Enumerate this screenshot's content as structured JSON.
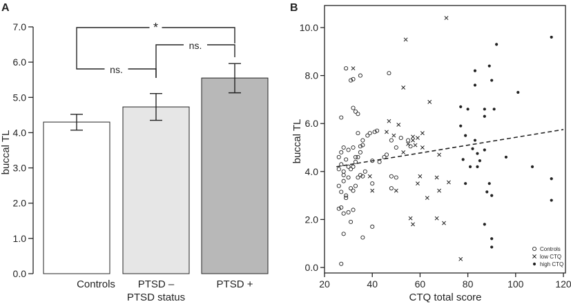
{
  "panels": {
    "a": "A",
    "b": "B"
  },
  "colors": {
    "ink": "#222222",
    "bar_controls": "#ffffff",
    "bar_ptsd_minus": "#e6e6e6",
    "bar_ptsd_plus": "#b8b8b8"
  },
  "chart_data": [
    {
      "type": "bar",
      "panel": "A",
      "title": "",
      "xlabel": "PTSD status",
      "ylabel": "buccal TL",
      "ylim": [
        0,
        7
      ],
      "yticks": [
        0,
        1,
        2,
        3,
        4,
        5,
        6,
        7
      ],
      "ytick_labels": [
        "0.0",
        "1.0",
        "2.0",
        "3.0",
        "4.0",
        "5.0",
        "6.0",
        "7.0"
      ],
      "categories": [
        "Controls",
        "PTSD –",
        "PTSD +"
      ],
      "values": [
        4.3,
        4.73,
        5.55
      ],
      "error_low": [
        4.07,
        4.35,
        5.13
      ],
      "error_high": [
        4.52,
        5.11,
        5.96
      ],
      "annotations": [
        {
          "label": "*",
          "from": 0,
          "to": 2
        },
        {
          "label": "ns.",
          "from": 0,
          "to": 1
        },
        {
          "label": "ns.",
          "from": 1,
          "to": 2
        }
      ]
    },
    {
      "type": "scatter",
      "panel": "B",
      "title": "",
      "xlabel": "CTQ total score",
      "ylabel": "buccal TL",
      "xlim": [
        20,
        120
      ],
      "ylim": [
        0,
        10
      ],
      "xticks": [
        20,
        40,
        60,
        80,
        100,
        120
      ],
      "xtick_labels": [
        "20",
        "40",
        "60",
        "80",
        "100",
        "120"
      ],
      "yticks": [
        0,
        2,
        4,
        6,
        8,
        10
      ],
      "ytick_labels": [
        "0.0",
        "2.0",
        "4.0",
        "6.0",
        "8.0",
        "10.0"
      ],
      "legend": {
        "position": "bottom-right",
        "entries": [
          "Controls",
          "low CTQ",
          "high CTQ"
        ]
      },
      "trend_line": {
        "style": "dashed",
        "x": [
          25,
          120
        ],
        "y": [
          4.2,
          5.75
        ]
      },
      "series": [
        {
          "name": "Controls",
          "marker": "circle",
          "points": [
            [
              27,
              0.15
            ],
            [
              28,
              1.4
            ],
            [
              27,
              2.5
            ],
            [
              26,
              2.45
            ],
            [
              28,
              2.25
            ],
            [
              29,
              2.9
            ],
            [
              31,
              1.9
            ],
            [
              32,
              2.4
            ],
            [
              36,
              1.25
            ],
            [
              40,
              1.7
            ],
            [
              26,
              3.4
            ],
            [
              27,
              3.15
            ],
            [
              28,
              3.6
            ],
            [
              29,
              3.0
            ],
            [
              30,
              3.75
            ],
            [
              31,
              3.3
            ],
            [
              32,
              3.2
            ],
            [
              33,
              3.4
            ],
            [
              34,
              3.75
            ],
            [
              35,
              3.85
            ],
            [
              26,
              4.1
            ],
            [
              27,
              4.3
            ],
            [
              28,
              4.0
            ],
            [
              29,
              4.5
            ],
            [
              30,
              4.2
            ],
            [
              31,
              4.1
            ],
            [
              32,
              4.2
            ],
            [
              33,
              4.4
            ],
            [
              34,
              4.6
            ],
            [
              35,
              4.8
            ],
            [
              26,
              4.6
            ],
            [
              27,
              4.8
            ],
            [
              28,
              5.0
            ],
            [
              30,
              4.9
            ],
            [
              32,
              5.0
            ],
            [
              35,
              5.05
            ],
            [
              36,
              5.3
            ],
            [
              38,
              5.5
            ],
            [
              39,
              5.6
            ],
            [
              41,
              5.65
            ],
            [
              42,
              5.7
            ],
            [
              40,
              4.45
            ],
            [
              43,
              4.4
            ],
            [
              45,
              4.6
            ],
            [
              46,
              4.7
            ],
            [
              48,
              5.3
            ],
            [
              50,
              5.0
            ],
            [
              52,
              5.4
            ],
            [
              55,
              5.3
            ],
            [
              56,
              5.05
            ],
            [
              27,
              6.25
            ],
            [
              29,
              8.3
            ],
            [
              31,
              7.8
            ],
            [
              32,
              7.85
            ],
            [
              33,
              6.5
            ],
            [
              32,
              6.65
            ],
            [
              34,
              6.4
            ],
            [
              35,
              8.0
            ],
            [
              47,
              8.1
            ],
            [
              37,
              4.0
            ],
            [
              36,
              3.8
            ],
            [
              48,
              3.8
            ],
            [
              50,
              3.75
            ],
            [
              48,
              3.3
            ],
            [
              40,
              3.5
            ],
            [
              33,
              4.6
            ],
            [
              28,
              3.85
            ],
            [
              34,
              5.6
            ],
            [
              36,
              5.1
            ],
            [
              30,
              2.3
            ]
          ]
        },
        {
          "name": "low CTQ",
          "marker": "x",
          "points": [
            [
              32,
              8.3
            ],
            [
              54,
              9.5
            ],
            [
              71,
              10.4
            ],
            [
              53,
              7.5
            ],
            [
              64,
              6.9
            ],
            [
              47,
              6.1
            ],
            [
              51,
              5.95
            ],
            [
              57,
              5.45
            ],
            [
              59,
              5.4
            ],
            [
              61,
              5.6
            ],
            [
              55,
              5.15
            ],
            [
              57,
              5.3
            ],
            [
              58,
              5.1
            ],
            [
              53,
              4.8
            ],
            [
              49,
              5.5
            ],
            [
              68,
              4.7
            ],
            [
              60,
              3.8
            ],
            [
              59,
              3.5
            ],
            [
              67,
              3.75
            ],
            [
              68,
              3.2
            ],
            [
              72,
              3.55
            ],
            [
              63,
              2.9
            ],
            [
              50,
              3.2
            ],
            [
              39,
              3.8
            ],
            [
              40,
              3.2
            ],
            [
              56,
              2.05
            ],
            [
              57,
              1.8
            ],
            [
              67,
              2.05
            ],
            [
              70,
              1.85
            ],
            [
              77,
              0.35
            ],
            [
              46,
              5.65
            ],
            [
              61,
              5.0
            ]
          ]
        },
        {
          "name": "high CTQ",
          "marker": "dot",
          "points": [
            [
              115,
              9.6
            ],
            [
              92,
              9.3
            ],
            [
              89,
              8.4
            ],
            [
              83,
              8.2
            ],
            [
              90,
              7.8
            ],
            [
              101,
              7.3
            ],
            [
              83,
              7.6
            ],
            [
              77,
              6.7
            ],
            [
              80,
              6.6
            ],
            [
              79,
              5.5
            ],
            [
              87,
              6.6
            ],
            [
              91,
              6.6
            ],
            [
              87,
              6.3
            ],
            [
              83,
              5.3
            ],
            [
              82,
              4.95
            ],
            [
              84,
              4.75
            ],
            [
              85,
              4.45
            ],
            [
              87,
              4.9
            ],
            [
              84,
              4.2
            ],
            [
              81,
              4.2
            ],
            [
              78,
              4.5
            ],
            [
              96,
              4.6
            ],
            [
              107,
              4.2
            ],
            [
              115,
              3.7
            ],
            [
              79,
              3.5
            ],
            [
              89,
              3.5
            ],
            [
              88,
              3.15
            ],
            [
              90,
              3.0
            ],
            [
              115,
              2.8
            ],
            [
              87,
              1.8
            ],
            [
              90,
              1.2
            ],
            [
              90,
              0.85
            ],
            [
              77,
              5.9
            ]
          ]
        }
      ]
    }
  ]
}
